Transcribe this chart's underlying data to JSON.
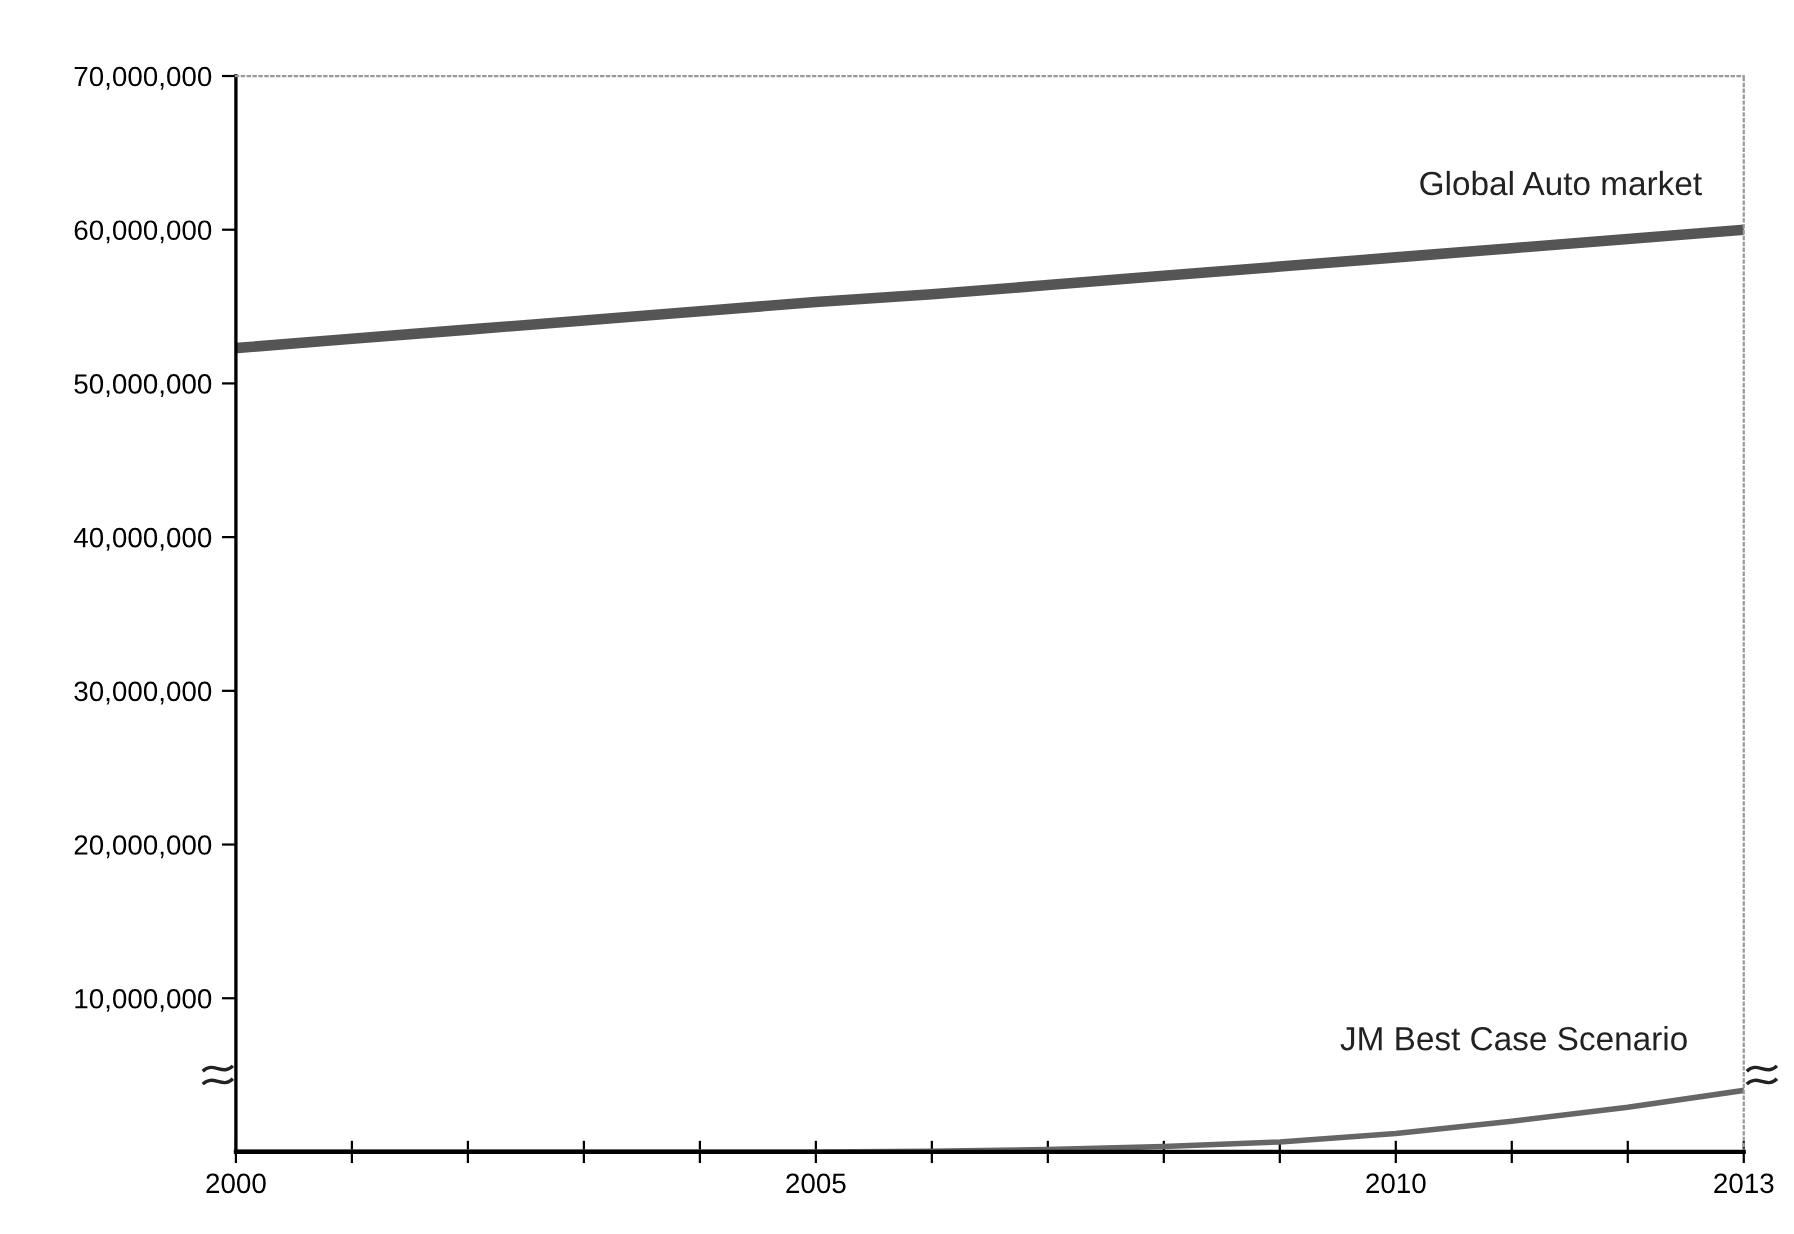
{
  "chart_data": {
    "type": "line",
    "x": [
      2000,
      2001,
      2002,
      2003,
      2004,
      2005,
      2006,
      2007,
      2008,
      2009,
      2010,
      2011,
      2012,
      2013
    ],
    "series": [
      {
        "name": "Global Auto market",
        "color": "#555555",
        "values": [
          52300000,
          52900000,
          53500000,
          54100000,
          54700000,
          55300000,
          55800000,
          56400000,
          57000000,
          57600000,
          58200000,
          58800000,
          59400000,
          60000000
        ]
      },
      {
        "name": "JM Best Case Scenario",
        "color": "#666666",
        "values": [
          0,
          0,
          0,
          0,
          0,
          0,
          50000,
          150000,
          350000,
          650000,
          1200000,
          2000000,
          2900000,
          4000000
        ]
      }
    ],
    "xlim": [
      2000,
      2013
    ],
    "xticks": [
      2000,
      {
        "value": 2001,
        "label": null
      },
      {
        "value": 2002,
        "label": null
      },
      {
        "value": 2003,
        "label": null
      },
      {
        "value": 2004,
        "label": null
      },
      2005,
      {
        "value": 2006,
        "label": null
      },
      {
        "value": 2007,
        "label": null
      },
      {
        "value": 2008,
        "label": null
      },
      {
        "value": 2009,
        "label": null
      },
      2010,
      {
        "value": 2011,
        "label": null
      },
      {
        "value": 2012,
        "label": null
      },
      2013
    ],
    "ylim": [
      0,
      70000000
    ],
    "yticks": [
      {
        "value": 10000000,
        "label": "10,000,000"
      },
      {
        "value": 20000000,
        "label": "20,000,000"
      },
      {
        "value": 30000000,
        "label": "30,000,000"
      },
      {
        "value": 40000000,
        "label": "40,000,000"
      },
      {
        "value": 50000000,
        "label": "50,000,000"
      },
      {
        "value": 60000000,
        "label": "60,000,000"
      },
      {
        "value": 70000000,
        "label": "70,000,000"
      }
    ],
    "grid": false,
    "legend": false,
    "marker": "none",
    "line_style": "solid"
  }
}
